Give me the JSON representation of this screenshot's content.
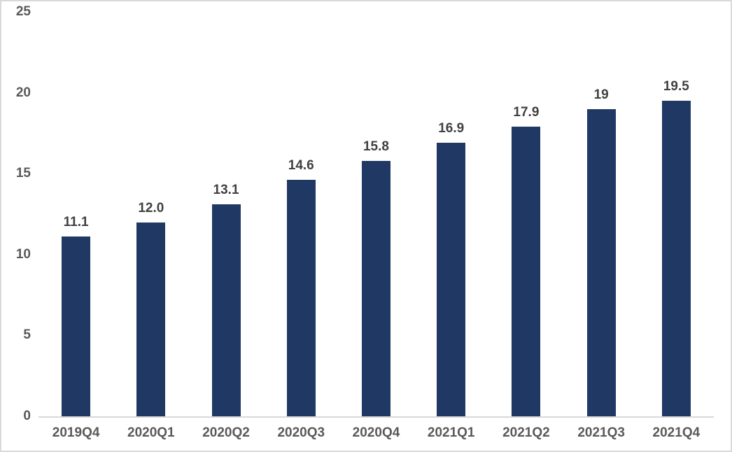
{
  "chart_data": {
    "type": "bar",
    "title": "",
    "xlabel": "",
    "ylabel": "",
    "categories": [
      "2019Q4",
      "2020Q1",
      "2020Q2",
      "2020Q3",
      "2020Q4",
      "2021Q1",
      "2021Q2",
      "2021Q3",
      "2021Q4"
    ],
    "values": [
      11.1,
      12.0,
      13.1,
      14.6,
      15.8,
      16.9,
      17.9,
      19,
      19.5
    ],
    "data_labels": [
      "11.1",
      "12.0",
      "13.1",
      "14.6",
      "15.8",
      "16.9",
      "17.9",
      "19",
      "19.5"
    ],
    "ylim": [
      0,
      25
    ],
    "yticks": [
      0,
      5,
      10,
      15,
      20,
      25
    ],
    "grid": false,
    "legend": null,
    "colors": {
      "bar": "#1F3864",
      "axis_line": "#D9D9D9",
      "frame_border": "#D9D9D9",
      "tick_label": "#595959",
      "data_label": "#404040",
      "background": "#FFFFFF"
    }
  }
}
